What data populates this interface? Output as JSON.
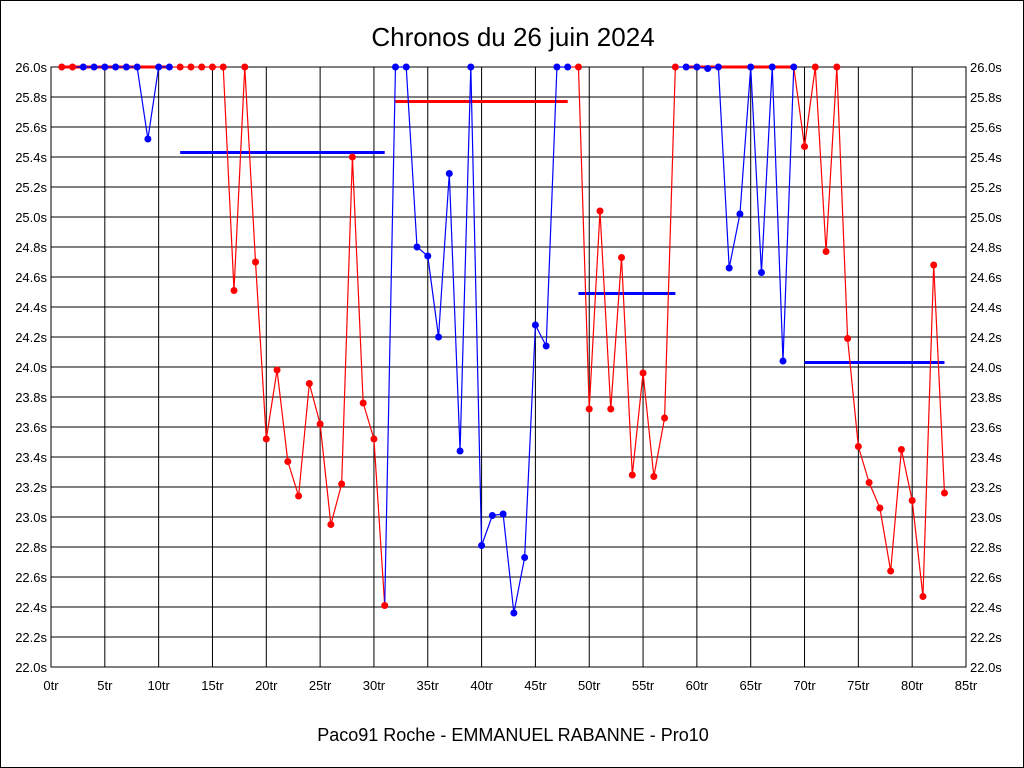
{
  "chart_data": {
    "type": "line",
    "title": "Chronos du 26 juin 2024",
    "footer": "Paco91 Roche - EMMANUEL RABANNE - Pro10",
    "xlim": [
      0,
      85
    ],
    "ylim": [
      22.0,
      26.0
    ],
    "x_ticks": [
      "0tr",
      "5tr",
      "10tr",
      "15tr",
      "20tr",
      "25tr",
      "30tr",
      "35tr",
      "40tr",
      "45tr",
      "50tr",
      "55tr",
      "60tr",
      "65tr",
      "70tr",
      "75tr",
      "80tr",
      "85tr"
    ],
    "y_ticks": [
      "22.0s",
      "22.2s",
      "22.4s",
      "22.6s",
      "22.8s",
      "23.0s",
      "23.2s",
      "23.4s",
      "23.6s",
      "23.8s",
      "24.0s",
      "24.2s",
      "24.4s",
      "24.6s",
      "24.8s",
      "25.0s",
      "25.2s",
      "25.4s",
      "25.6s",
      "25.8s",
      "26.0s"
    ],
    "grid": true,
    "colors": {
      "red": "#ff0000",
      "blue": "#0000ff"
    },
    "laps": [
      {
        "x": 1,
        "y": 26.0,
        "c": "red"
      },
      {
        "x": 2,
        "y": 26.0,
        "c": "red"
      },
      {
        "x": 3,
        "y": 26.0,
        "c": "blue"
      },
      {
        "x": 4,
        "y": 26.0,
        "c": "blue"
      },
      {
        "x": 5,
        "y": 26.0,
        "c": "blue"
      },
      {
        "x": 6,
        "y": 26.0,
        "c": "blue"
      },
      {
        "x": 7,
        "y": 26.0,
        "c": "blue"
      },
      {
        "x": 8,
        "y": 26.0,
        "c": "blue"
      },
      {
        "x": 9,
        "y": 25.52,
        "c": "blue"
      },
      {
        "x": 10,
        "y": 26.0,
        "c": "blue"
      },
      {
        "x": 11,
        "y": 26.0,
        "c": "blue"
      },
      {
        "x": 12,
        "y": 26.0,
        "c": "red"
      },
      {
        "x": 13,
        "y": 26.0,
        "c": "red"
      },
      {
        "x": 14,
        "y": 26.0,
        "c": "red"
      },
      {
        "x": 15,
        "y": 26.0,
        "c": "red"
      },
      {
        "x": 16,
        "y": 26.0,
        "c": "red"
      },
      {
        "x": 17,
        "y": 24.51,
        "c": "red"
      },
      {
        "x": 18,
        "y": 26.0,
        "c": "red"
      },
      {
        "x": 19,
        "y": 24.7,
        "c": "red"
      },
      {
        "x": 20,
        "y": 23.52,
        "c": "red"
      },
      {
        "x": 21,
        "y": 23.98,
        "c": "red"
      },
      {
        "x": 22,
        "y": 23.37,
        "c": "red"
      },
      {
        "x": 23,
        "y": 23.14,
        "c": "red"
      },
      {
        "x": 24,
        "y": 23.89,
        "c": "red"
      },
      {
        "x": 25,
        "y": 23.62,
        "c": "red"
      },
      {
        "x": 26,
        "y": 22.95,
        "c": "red"
      },
      {
        "x": 27,
        "y": 23.22,
        "c": "red"
      },
      {
        "x": 28,
        "y": 25.4,
        "c": "red"
      },
      {
        "x": 29,
        "y": 23.76,
        "c": "red"
      },
      {
        "x": 30,
        "y": 23.52,
        "c": "red"
      },
      {
        "x": 31,
        "y": 22.41,
        "c": "red"
      },
      {
        "x": 32,
        "y": 26.0,
        "c": "blue"
      },
      {
        "x": 33,
        "y": 26.0,
        "c": "blue"
      },
      {
        "x": 34,
        "y": 24.8,
        "c": "blue"
      },
      {
        "x": 35,
        "y": 24.74,
        "c": "blue"
      },
      {
        "x": 36,
        "y": 24.2,
        "c": "blue"
      },
      {
        "x": 37,
        "y": 25.29,
        "c": "blue"
      },
      {
        "x": 38,
        "y": 23.44,
        "c": "blue"
      },
      {
        "x": 39,
        "y": 26.0,
        "c": "blue"
      },
      {
        "x": 40,
        "y": 22.81,
        "c": "blue"
      },
      {
        "x": 41,
        "y": 23.01,
        "c": "blue"
      },
      {
        "x": 42,
        "y": 23.02,
        "c": "blue"
      },
      {
        "x": 43,
        "y": 22.36,
        "c": "blue"
      },
      {
        "x": 44,
        "y": 22.73,
        "c": "blue"
      },
      {
        "x": 45,
        "y": 24.28,
        "c": "blue"
      },
      {
        "x": 46,
        "y": 24.14,
        "c": "blue"
      },
      {
        "x": 47,
        "y": 26.0,
        "c": "blue"
      },
      {
        "x": 48,
        "y": 26.0,
        "c": "blue"
      },
      {
        "x": 49,
        "y": 26.0,
        "c": "red"
      },
      {
        "x": 50,
        "y": 23.72,
        "c": "red"
      },
      {
        "x": 51,
        "y": 25.04,
        "c": "red"
      },
      {
        "x": 52,
        "y": 23.72,
        "c": "red"
      },
      {
        "x": 53,
        "y": 24.73,
        "c": "red"
      },
      {
        "x": 54,
        "y": 23.28,
        "c": "red"
      },
      {
        "x": 55,
        "y": 23.96,
        "c": "red"
      },
      {
        "x": 56,
        "y": 23.27,
        "c": "red"
      },
      {
        "x": 57,
        "y": 23.66,
        "c": "red"
      },
      {
        "x": 58,
        "y": 26.0,
        "c": "red"
      },
      {
        "x": 59,
        "y": 26.0,
        "c": "blue"
      },
      {
        "x": 60,
        "y": 26.0,
        "c": "blue"
      },
      {
        "x": 61,
        "y": 25.99,
        "c": "blue"
      },
      {
        "x": 62,
        "y": 26.0,
        "c": "blue"
      },
      {
        "x": 63,
        "y": 24.66,
        "c": "blue"
      },
      {
        "x": 64,
        "y": 25.02,
        "c": "blue"
      },
      {
        "x": 65,
        "y": 26.0,
        "c": "blue"
      },
      {
        "x": 66,
        "y": 24.63,
        "c": "blue"
      },
      {
        "x": 67,
        "y": 26.0,
        "c": "blue"
      },
      {
        "x": 68,
        "y": 24.04,
        "c": "blue"
      },
      {
        "x": 69,
        "y": 26.0,
        "c": "blue"
      },
      {
        "x": 70,
        "y": 25.47,
        "c": "red"
      },
      {
        "x": 71,
        "y": 26.0,
        "c": "red"
      },
      {
        "x": 72,
        "y": 24.77,
        "c": "red"
      },
      {
        "x": 73,
        "y": 26.0,
        "c": "red"
      },
      {
        "x": 74,
        "y": 24.19,
        "c": "red"
      },
      {
        "x": 75,
        "y": 23.47,
        "c": "red"
      },
      {
        "x": 76,
        "y": 23.23,
        "c": "red"
      },
      {
        "x": 77,
        "y": 23.06,
        "c": "red"
      },
      {
        "x": 78,
        "y": 22.64,
        "c": "red"
      },
      {
        "x": 79,
        "y": 23.45,
        "c": "red"
      },
      {
        "x": 80,
        "y": 23.11,
        "c": "red"
      },
      {
        "x": 81,
        "y": 22.47,
        "c": "red"
      },
      {
        "x": 82,
        "y": 24.68,
        "c": "red"
      },
      {
        "x": 83,
        "y": 23.16,
        "c": "red"
      }
    ],
    "averages": [
      {
        "from": 1,
        "to": 11,
        "y": 26.0,
        "c": "red"
      },
      {
        "from": 12,
        "to": 31,
        "y": 25.43,
        "c": "blue"
      },
      {
        "from": 32,
        "to": 48,
        "y": 25.77,
        "c": "red"
      },
      {
        "from": 49,
        "to": 58,
        "y": 24.49,
        "c": "blue"
      },
      {
        "from": 59,
        "to": 69,
        "y": 26.0,
        "c": "red"
      },
      {
        "from": 70,
        "to": 83,
        "y": 24.03,
        "c": "blue"
      }
    ]
  }
}
